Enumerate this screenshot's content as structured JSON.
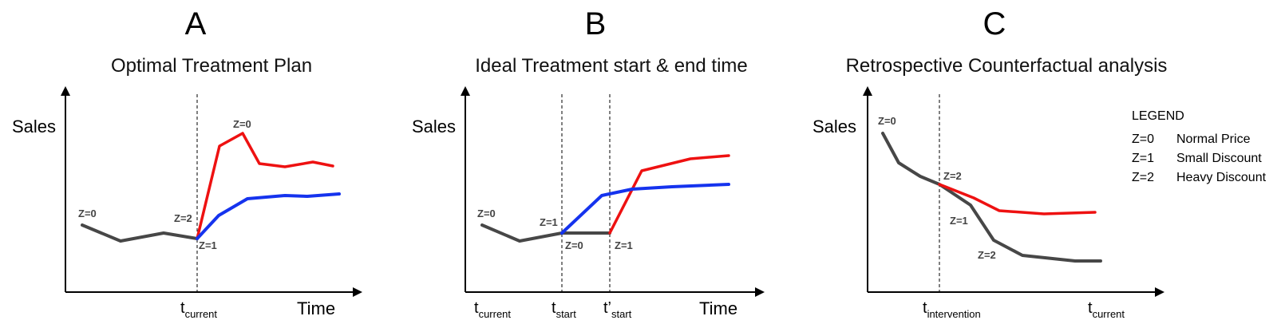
{
  "panels": [
    {
      "letter": "A",
      "title": "Optimal Treatment Plan",
      "ylabel": "Sales",
      "xlabel": "Time",
      "time_marks": [
        {
          "main": "t",
          "sub": "current"
        }
      ],
      "z_labels": [
        "Z=0",
        "Z=2",
        "Z=0",
        "Z=1"
      ]
    },
    {
      "letter": "B",
      "title": "Ideal Treatment start & end time",
      "ylabel": "Sales",
      "xlabel": "Time",
      "time_marks": [
        {
          "main": "t",
          "sub": "current"
        },
        {
          "main": "t",
          "sub": "start"
        },
        {
          "main": "t’",
          "sub": "start"
        }
      ],
      "z_labels": [
        "Z=0",
        "Z=1",
        "Z=0",
        "Z=1"
      ]
    },
    {
      "letter": "C",
      "title": "Retrospective Counterfactual analysis",
      "ylabel": "Sales",
      "xlabel": "",
      "time_marks": [
        {
          "main": "t",
          "sub": "intervention"
        },
        {
          "main": "t",
          "sub": "current"
        }
      ],
      "z_labels": [
        "Z=0",
        "Z=2",
        "Z=1",
        "Z=2"
      ]
    }
  ],
  "legend": {
    "title": "LEGEND",
    "items": [
      {
        "code": "Z=0",
        "desc": "Normal Price"
      },
      {
        "code": "Z=1",
        "desc": "Small Discount"
      },
      {
        "code": "Z=2",
        "desc": "Heavy Discount"
      }
    ]
  },
  "colors": {
    "history": "#474747",
    "red": "#ee1111",
    "blue": "#1533ee"
  }
}
